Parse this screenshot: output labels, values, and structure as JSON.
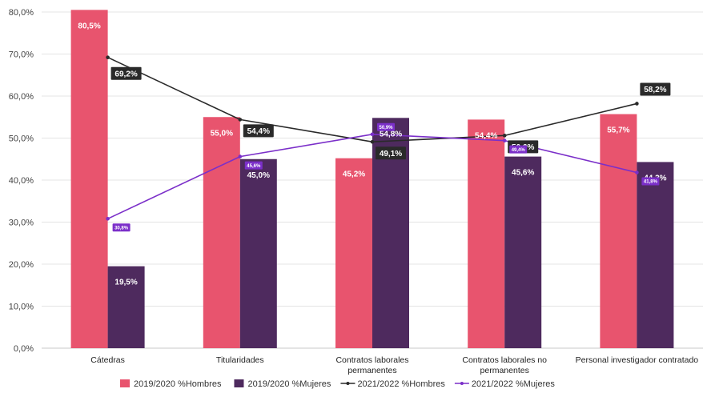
{
  "chart_data": {
    "type": "bar",
    "categories": [
      "Cátedras",
      "Titularidades",
      "Contratos laborales permanentes",
      "Contratos laborales no permanentes",
      "Personal investigador contratado"
    ],
    "category_lines": [
      [
        "Cátedras"
      ],
      [
        "Titularidades"
      ],
      [
        "Contratos laborales",
        "permanentes"
      ],
      [
        "Contratos laborales no",
        "permanentes"
      ],
      [
        "Personal investigador contratado"
      ]
    ],
    "ylim": [
      0,
      80
    ],
    "yticks": [
      "0,0%",
      "10,0%",
      "20,0%",
      "30,0%",
      "40,0%",
      "50,0%",
      "60,0%",
      "70,0%",
      "80,0%"
    ],
    "grid": true,
    "legend_position": "bottom",
    "series": [
      {
        "name": "2019/2020 %Hombres",
        "kind": "bar",
        "color": "#e8546e",
        "values": [
          80.5,
          55.0,
          45.2,
          54.4,
          55.7
        ],
        "labels": [
          "80,5%",
          "55,0%",
          "45,2%",
          "54,4%",
          "55,7%"
        ]
      },
      {
        "name": "2019/2020 %Mujeres",
        "kind": "bar",
        "color": "#4e2a5e",
        "values": [
          19.5,
          45.0,
          54.8,
          45.6,
          44.3
        ],
        "labels": [
          "19,5%",
          "45,0%",
          "54,8%",
          "45,6%",
          "44,3%"
        ]
      },
      {
        "name": "2021/2022 %Hombres",
        "kind": "line",
        "color": "#2a2a2a",
        "values": [
          69.2,
          54.4,
          49.1,
          50.6,
          58.2
        ],
        "labels": [
          "69,2%",
          "54,4%",
          "49,1%",
          "50,6%",
          "58,2%"
        ]
      },
      {
        "name": "2021/2022 %Mujeres",
        "kind": "line",
        "color": "#7b2fc9",
        "values": [
          30.8,
          45.6,
          50.9,
          49.4,
          41.8
        ],
        "labels": [
          "30,8%",
          "45,6%",
          "50,9%",
          "49,4%",
          "41,8%"
        ]
      }
    ]
  }
}
